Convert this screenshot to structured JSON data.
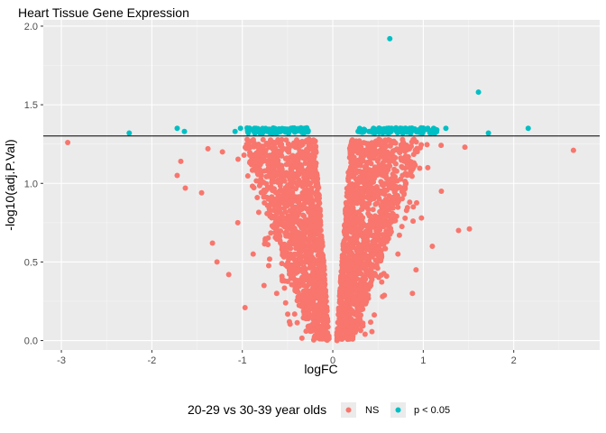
{
  "chart_data": {
    "type": "scatter",
    "title": "Heart Tissue Gene Expression",
    "xlabel": "logFC",
    "ylabel": "-log10(adj.P.Val)",
    "xlim": [
      -3.2,
      2.95
    ],
    "ylim": [
      -0.06,
      2.04
    ],
    "x_ticks": [
      -3,
      -2,
      -1,
      0,
      1,
      2
    ],
    "y_ticks": [
      0.0,
      0.5,
      1.0,
      1.5,
      2.0
    ],
    "x_tick_labels": [
      "-3",
      "-2",
      "-1",
      "0",
      "1",
      "2"
    ],
    "y_tick_labels": [
      "0.0",
      "0.5",
      "1.0",
      "1.5",
      "2.0"
    ],
    "threshold_y": 1.301,
    "grid": true,
    "legend_position": "bottom",
    "legend_title": "20-29 vs 30-39 year olds",
    "series": [
      {
        "name": "NS",
        "color": "#F8766D",
        "points": [
          [
            -2.93,
            1.26
          ],
          [
            -1.72,
            1.05
          ],
          [
            -1.68,
            1.14
          ],
          [
            -1.63,
            0.97
          ],
          [
            -1.45,
            0.94
          ],
          [
            -1.38,
            1.22
          ],
          [
            -1.33,
            0.62
          ],
          [
            -1.28,
            0.5
          ],
          [
            -1.22,
            1.2
          ],
          [
            -1.15,
            0.42
          ],
          [
            -0.97,
            0.21
          ],
          [
            -1.05,
            0.75
          ],
          [
            -0.88,
            0.55
          ],
          [
            -0.76,
            0.35
          ],
          [
            -0.62,
            0.3
          ],
          [
            2.66,
            1.21
          ],
          [
            1.51,
            0.71
          ],
          [
            1.39,
            0.7
          ],
          [
            1.46,
            1.23
          ],
          [
            1.2,
            0.95
          ],
          [
            1.1,
            0.6
          ],
          [
            0.92,
            0.45
          ],
          [
            0.85,
            0.88
          ],
          [
            0.88,
            0.3
          ],
          [
            1.05,
            1.1
          ],
          [
            0.55,
            0.28
          ],
          [
            0.72,
            0.55
          ],
          [
            -0.52,
            0.48
          ],
          [
            -0.8,
            1.12
          ],
          [
            0.98,
            0.78
          ]
        ]
      },
      {
        "name": "p < 0.05",
        "color": "#00BFC4",
        "points": [
          [
            0.63,
            1.92
          ],
          [
            1.61,
            1.58
          ],
          [
            2.16,
            1.35
          ],
          [
            1.72,
            1.32
          ],
          [
            -2.25,
            1.32
          ],
          [
            -1.72,
            1.35
          ],
          [
            -1.64,
            1.33
          ],
          [
            -1.08,
            1.33
          ],
          [
            -1.02,
            1.35
          ],
          [
            -0.85,
            1.34
          ],
          [
            -0.78,
            1.34
          ],
          [
            -0.65,
            1.35
          ],
          [
            -0.55,
            1.34
          ],
          [
            -0.45,
            1.35
          ],
          [
            -0.35,
            1.34
          ],
          [
            -0.28,
            1.34
          ],
          [
            0.28,
            1.33
          ],
          [
            0.35,
            1.34
          ],
          [
            0.45,
            1.35
          ],
          [
            0.55,
            1.34
          ],
          [
            0.65,
            1.35
          ],
          [
            0.75,
            1.34
          ],
          [
            0.85,
            1.35
          ],
          [
            0.95,
            1.34
          ],
          [
            1.05,
            1.35
          ],
          [
            1.15,
            1.34
          ],
          [
            1.25,
            1.35
          ]
        ]
      }
    ],
    "ns_cloud": {
      "description_free": true,
      "left_arm_x": [
        -1.0,
        -0.05
      ],
      "right_arm_x": [
        0.05,
        1.0
      ],
      "y_max": 1.28,
      "point_count_per_arm": 1400
    }
  }
}
